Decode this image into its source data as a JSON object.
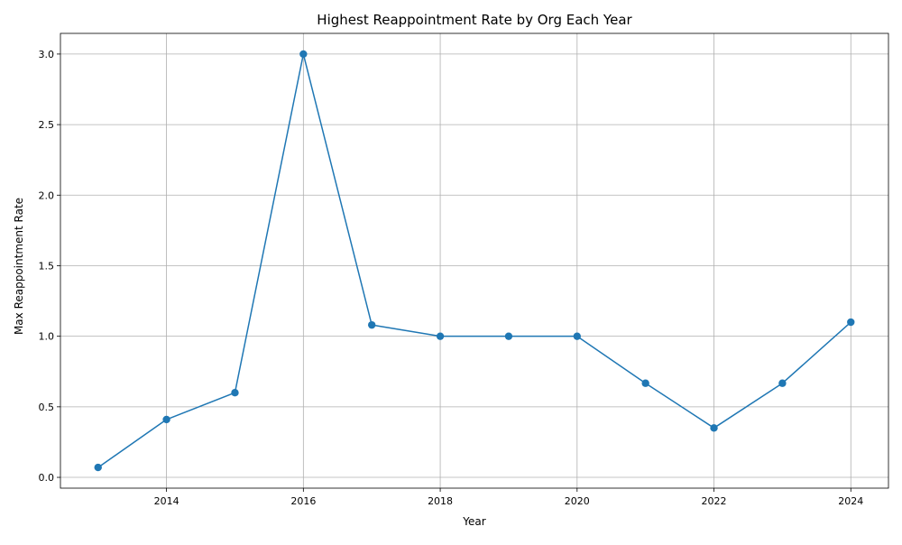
{
  "chart_data": {
    "type": "line",
    "title": "Highest Reappointment Rate by Org Each Year",
    "xlabel": "Year",
    "ylabel": "Max Reappointment Rate",
    "x": [
      2013,
      2014,
      2015,
      2016,
      2017,
      2018,
      2019,
      2020,
      2021,
      2022,
      2023,
      2024
    ],
    "series": [
      {
        "values": [
          0.07,
          0.41,
          0.6,
          3.0,
          1.08,
          1.0,
          1.0,
          1.0,
          0.667,
          0.35,
          0.667,
          1.1
        ],
        "color": "#1f77b4",
        "marker": "circle"
      }
    ],
    "xlim": [
      2012.45,
      2024.55
    ],
    "ylim": [
      -0.0765,
      3.1465
    ],
    "xticks": [
      2014,
      2016,
      2018,
      2020,
      2022,
      2024
    ],
    "xtick_labels": [
      "2014",
      "2016",
      "2018",
      "2020",
      "2022",
      "2024"
    ],
    "yticks": [
      0.0,
      0.5,
      1.0,
      1.5,
      2.0,
      2.5,
      3.0
    ],
    "ytick_labels": [
      "0.0",
      "0.5",
      "1.0",
      "1.5",
      "2.0",
      "2.5",
      "3.0"
    ],
    "grid": true,
    "legend": "none"
  }
}
